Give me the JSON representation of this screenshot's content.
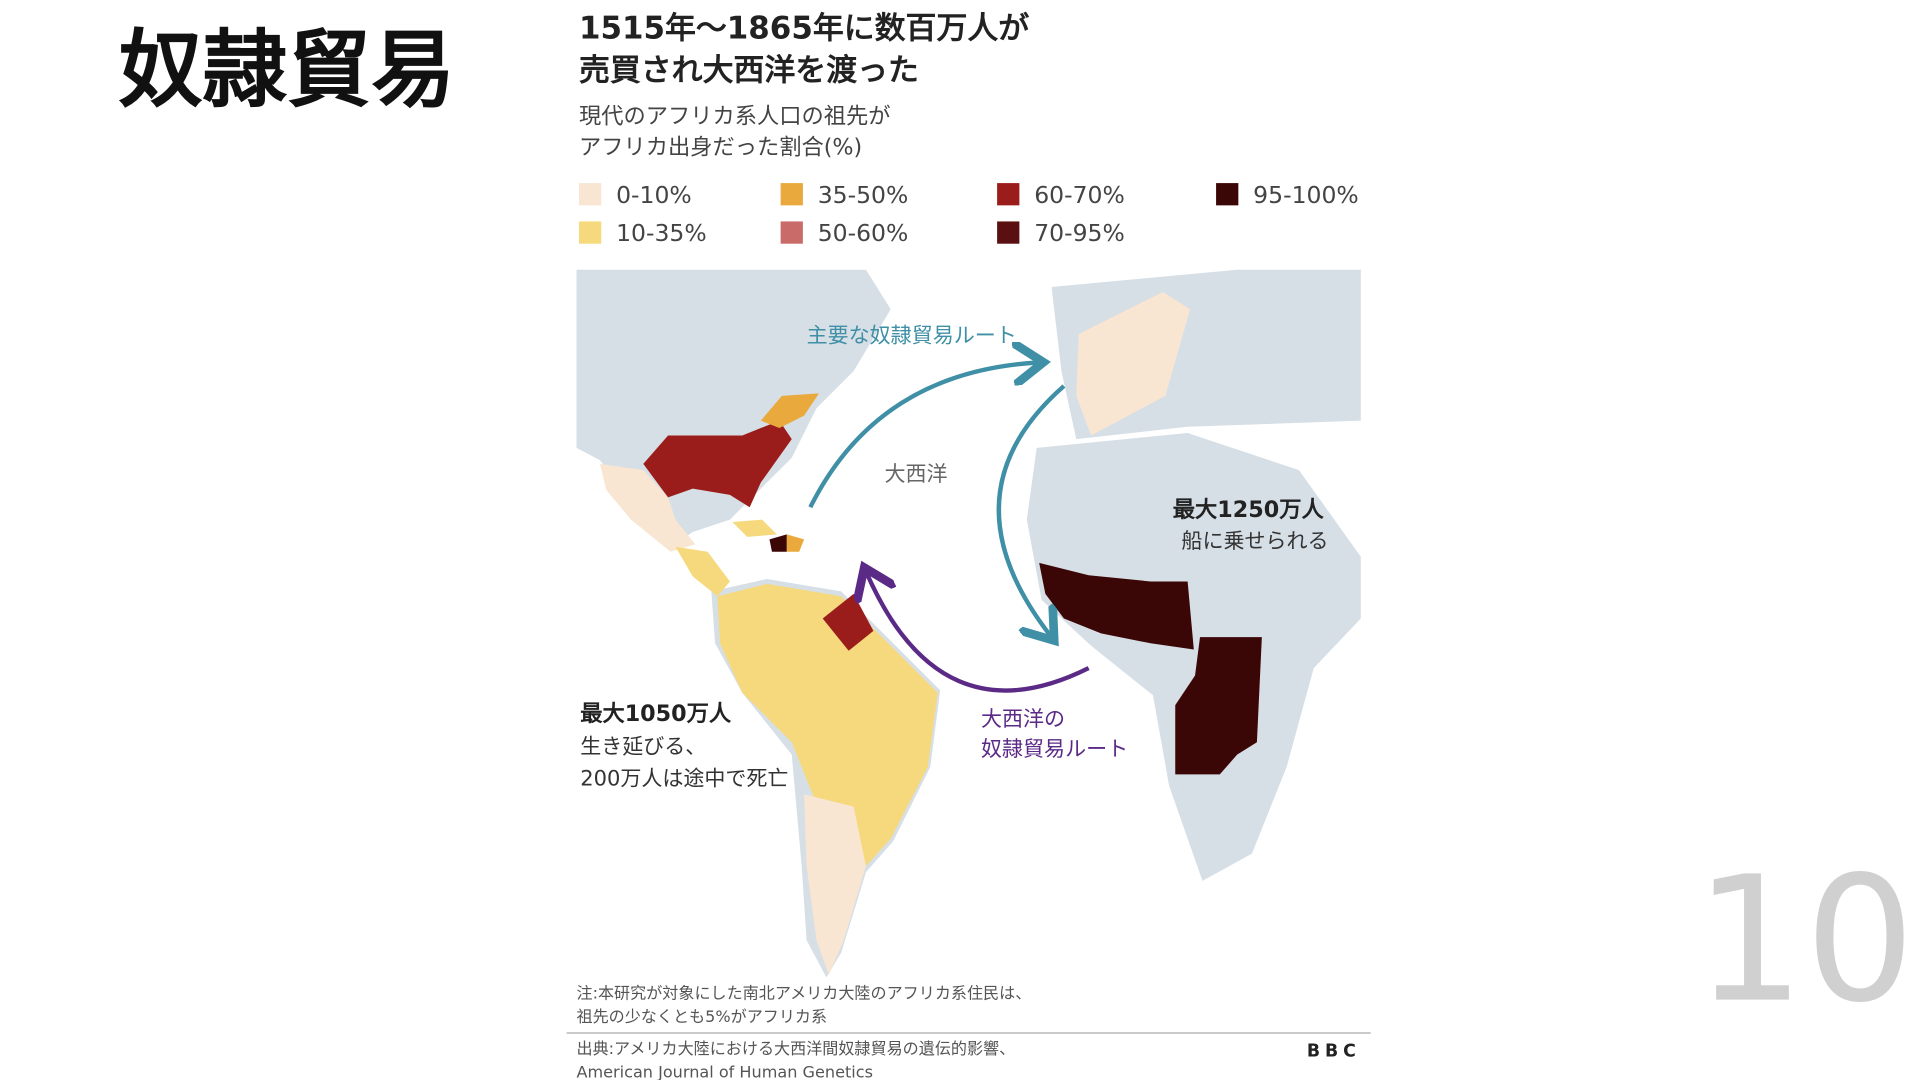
{
  "slide": {
    "title": "奴隷貿易",
    "page_number": "10"
  },
  "figure": {
    "title_lines": [
      "1515年〜1865年に数百万人が",
      "売買され大西洋を渡った"
    ],
    "subtitle_lines": [
      "現代のアフリカ系人口の祖先が",
      "アフリカ出身だった割合(%)"
    ],
    "legend": [
      {
        "label": "0-10%",
        "color": "#f8e6d3"
      },
      {
        "label": "10-35%",
        "color": "#f6d97c"
      },
      {
        "label": "35-50%",
        "color": "#e9a93c"
      },
      {
        "label": "50-60%",
        "color": "#c96b69"
      },
      {
        "label": "60-70%",
        "color": "#9a1d1b"
      },
      {
        "label": "70-95%",
        "color": "#5a1010"
      },
      {
        "label": "95-100%",
        "color": "#3b0606"
      }
    ],
    "map_labels": {
      "main_route": "主要な奴隷貿易ルート",
      "ocean": "大西洋",
      "shipped_lines": [
        "最大1250万人",
        "船に乗せられる"
      ],
      "atlantic_route_lines": [
        "大西洋の",
        "奴隷貿易ルート"
      ],
      "survived_lines": [
        "最大1050万人",
        "生き延びる、",
        "200万人は途中で死亡"
      ]
    },
    "note_lines": [
      "注:本研究が対象にした南北アメリカ大陸のアフリカ系住民は、",
      "祖先の少なくとも5%がアフリカ系"
    ],
    "source_lines": [
      "出典:アメリカ大陸における大西洋間奴隷貿易の遺伝的影響、",
      "American Journal of Human Genetics"
    ],
    "logo": "BBC"
  }
}
